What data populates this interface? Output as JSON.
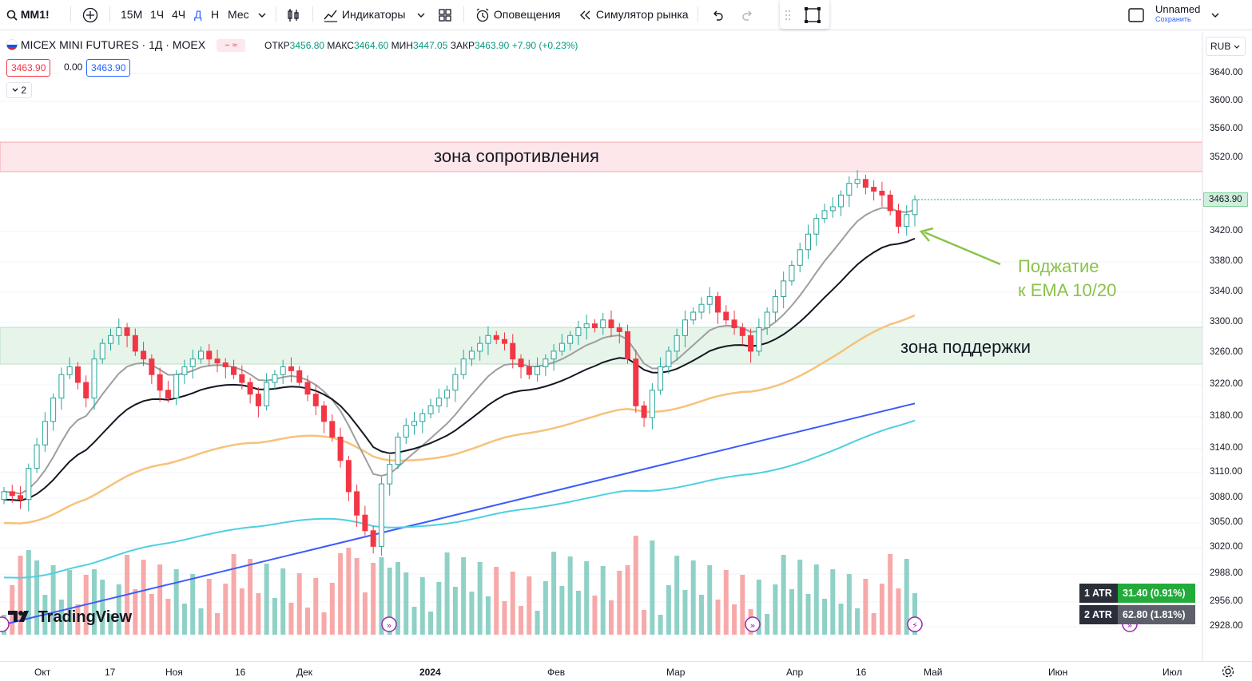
{
  "toolbar": {
    "symbol": "MM1!",
    "intervals": [
      "15М",
      "1Ч",
      "4Ч",
      "Д",
      "Н",
      "Мес"
    ],
    "active_interval": "Д",
    "indicators_label": "Индикаторы",
    "alerts_label": "Оповещения",
    "replay_label": "Симулятор рынка",
    "layout_name": "Unnamed",
    "save_label": "Сохранить"
  },
  "legend": {
    "title": "MICEX MINI FUTURES · 1Д · MOEX",
    "open_label": "ОТКР",
    "open": "3456.80",
    "high_label": "МАКС",
    "high": "3464.60",
    "low_label": "МИН",
    "low": "3447.05",
    "close_label": "ЗАКР",
    "close": "3463.90",
    "change": "+7.90 (+0.23%)",
    "bid": "3463.90",
    "spread": "0.00",
    "ask": "3463.90",
    "indicators_count": "2"
  },
  "currency": "RUB",
  "price_axis": [
    "3640.00",
    "3600.00",
    "3560.00",
    "3520.00",
    "3420.00",
    "3380.00",
    "3340.00",
    "3300.00",
    "3260.00",
    "3220.00",
    "3180.00",
    "3140.00",
    "3110.00",
    "3080.00",
    "3050.00",
    "3020.00",
    "2988.00",
    "2956.00",
    "2928.00"
  ],
  "last_price": "3463.90",
  "time_axis": [
    "Окт",
    "17",
    "Ноя",
    "16",
    "Дек",
    "2024",
    "Фев",
    "Мар",
    "Апр",
    "16",
    "Май",
    "Июн",
    "Июл"
  ],
  "annotations": {
    "resistance": "зона сопротивления",
    "support": "зона поддержки",
    "squeeze_line1": "Поджатие",
    "squeeze_line2": "к EMA 10/20"
  },
  "atr": [
    {
      "name": "1 ATR",
      "value": "31.40 (0.91%)"
    },
    {
      "name": "2 ATR",
      "value": "62.80 (1.81%)"
    }
  ],
  "logo": "TradingView",
  "colors": {
    "up": "#26a69a",
    "down": "#f23645",
    "ema10": "#9e9e9e",
    "ema20": "#131722",
    "ema50": "#f6c27a",
    "ema100": "#4dd0e1",
    "ema200": "#3d5afe",
    "resistance_zone": "#fde7ea",
    "support_zone": "#e6f4ea",
    "annotation": "#8bc34a"
  },
  "chart_data": {
    "type": "candlestick",
    "title": "MICEX MINI FUTURES · 1Д · MOEX",
    "ylim": [
      2928,
      3660
    ],
    "closes": [
      3090,
      3085,
      3080,
      3120,
      3150,
      3180,
      3210,
      3240,
      3250,
      3230,
      3210,
      3260,
      3280,
      3290,
      3300,
      3290,
      3270,
      3260,
      3240,
      3220,
      3210,
      3240,
      3250,
      3260,
      3270,
      3260,
      3255,
      3250,
      3240,
      3230,
      3215,
      3200,
      3230,
      3240,
      3250,
      3245,
      3230,
      3215,
      3200,
      3180,
      3160,
      3130,
      3090,
      3060,
      3040,
      3020,
      3100,
      3125,
      3160,
      3175,
      3180,
      3190,
      3200,
      3210,
      3220,
      3240,
      3260,
      3270,
      3280,
      3290,
      3285,
      3280,
      3260,
      3250,
      3240,
      3250,
      3260,
      3270,
      3280,
      3290,
      3300,
      3305,
      3300,
      3310,
      3300,
      3295,
      3260,
      3200,
      3185,
      3220,
      3250,
      3270,
      3290,
      3310,
      3320,
      3330,
      3340,
      3320,
      3310,
      3300,
      3290,
      3270,
      3300,
      3320,
      3340,
      3360,
      3380,
      3400,
      3420,
      3440,
      3450,
      3455,
      3470,
      3485,
      3490,
      3480,
      3475,
      3470,
      3450,
      3430,
      3445,
      3464
    ],
    "ema10": "",
    "zones": [
      {
        "name": "зона сопротивления",
        "from": 3500,
        "to": 3545
      },
      {
        "name": "зона поддержки",
        "from": 3248,
        "to": 3296
      }
    ]
  }
}
